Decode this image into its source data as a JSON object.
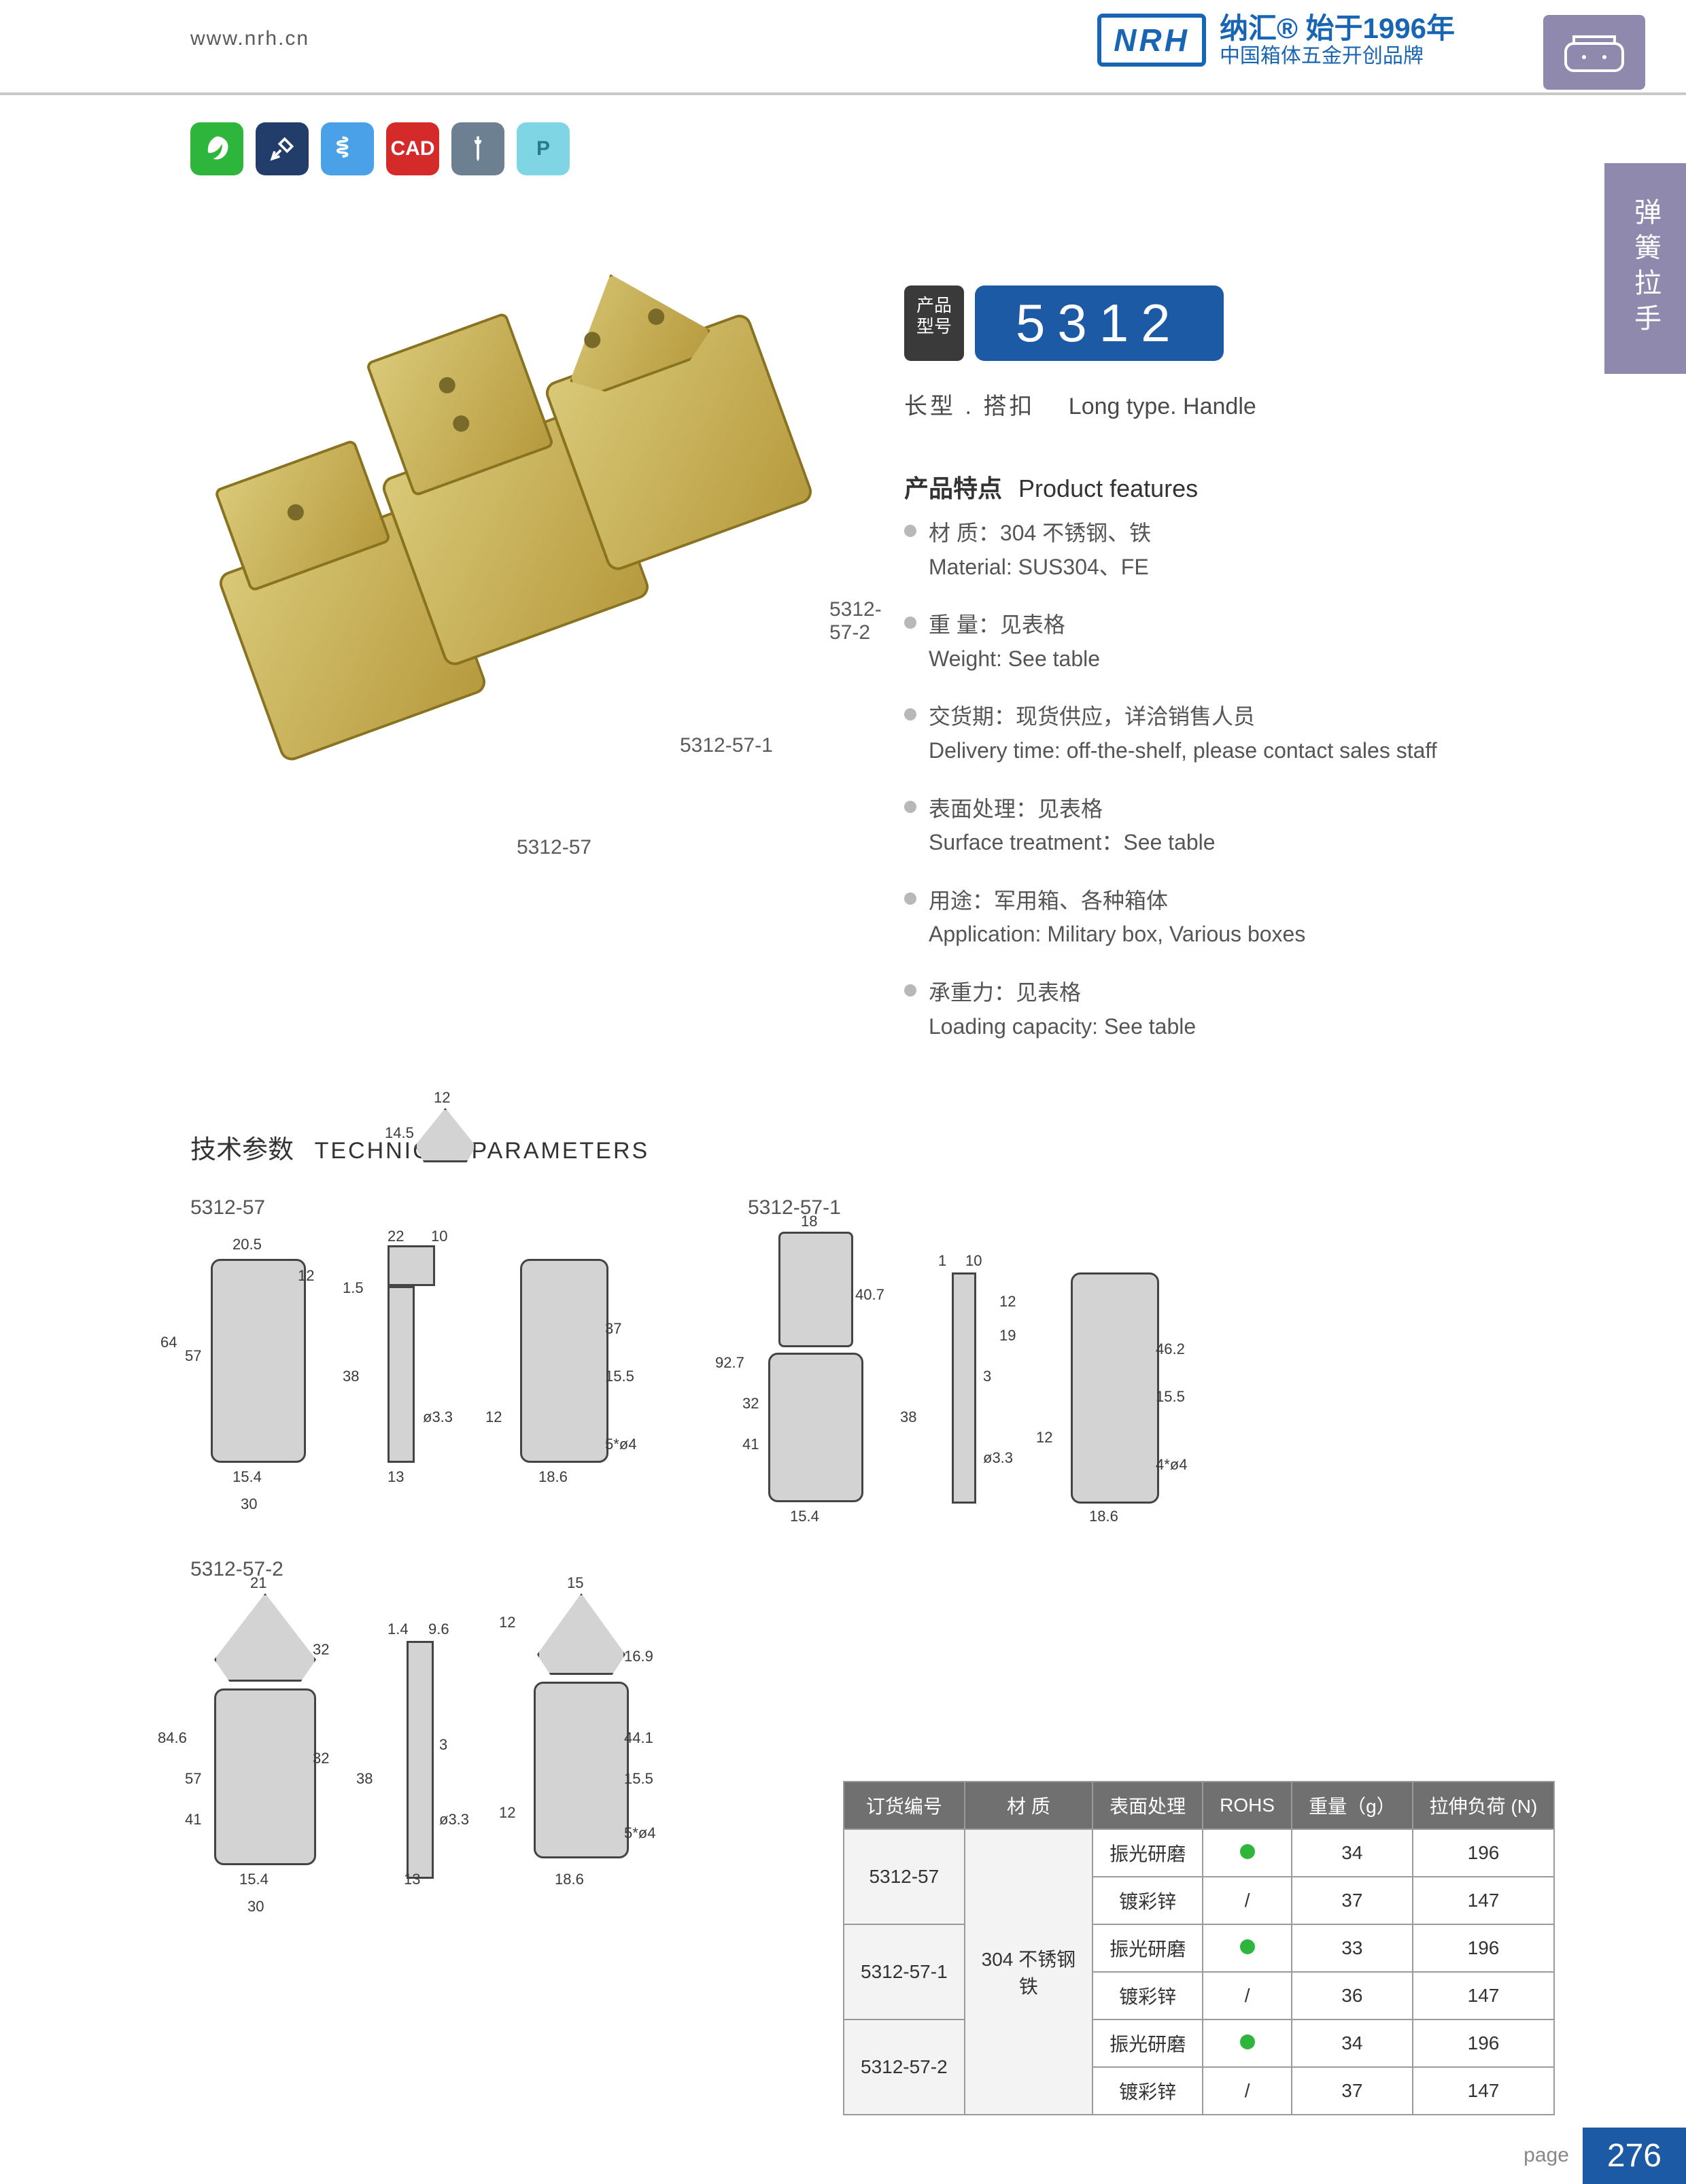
{
  "header": {
    "url": "www.nrh.cn",
    "logo_text": "NRH",
    "brand_cn_top": "纳汇® 始于1996年",
    "brand_cn_sub": "中国箱体五金开创品牌"
  },
  "icon_row": [
    "leaf",
    "tools",
    "spring",
    "CAD",
    "screw",
    "P"
  ],
  "side_tab": "弹簧拉手",
  "photo_labels": {
    "a": "5312-57",
    "b": "5312-57-1",
    "c": "5312-57-2"
  },
  "model": {
    "pre_cn1": "产品",
    "pre_cn2": "型号",
    "number": "5312",
    "sub_cn": "长型 . 搭扣",
    "sub_en": "Long type. Handle"
  },
  "features_title": {
    "cn": "产品特点",
    "en": "Product features"
  },
  "features": [
    {
      "cn": "材 质：304 不锈钢、铁",
      "en": "Material: SUS304、FE"
    },
    {
      "cn": "重 量：见表格",
      "en": "Weight: See table"
    },
    {
      "cn": "交货期：现货供应，详洽销售人员",
      "en": "Delivery time: off-the-shelf, please contact sales staff"
    },
    {
      "cn": "表面处理：见表格",
      "en": "Surface treatment：See table"
    },
    {
      "cn": "用途：军用箱、各种箱体",
      "en": "Application: Military box, Various boxes"
    },
    {
      "cn": "承重力：见表格",
      "en": "Loading capacity: See table"
    }
  ],
  "section_title": {
    "cn": "技术参数",
    "en": "TECHNICAL PARAMETERS"
  },
  "drawings": {
    "a": {
      "label": "5312-57",
      "top": [
        "12",
        "14.5"
      ],
      "front": [
        "20.5",
        "64",
        "57",
        "15.4",
        "30",
        "12"
      ],
      "side": [
        "22",
        "10",
        "1.5",
        "38",
        "13",
        "ø3.3"
      ],
      "back": [
        "37",
        "15.5",
        "12",
        "18.6",
        "5*ø4"
      ]
    },
    "b": {
      "label": "5312-57-1",
      "front": [
        "18",
        "92.7",
        "32",
        "41",
        "15.4",
        "40.7"
      ],
      "side": [
        "1",
        "10",
        "38",
        "ø3.3",
        "3",
        "12",
        "19"
      ],
      "back": [
        "46.2",
        "15.5",
        "12",
        "18.6",
        "4*ø4"
      ]
    },
    "c": {
      "label": "5312-57-2",
      "front": [
        "21",
        "84.6",
        "57",
        "32",
        "32",
        "15.4",
        "30",
        "41"
      ],
      "side": [
        "1.4",
        "9.6",
        "38",
        "13",
        "ø3.3",
        "3"
      ],
      "back": [
        "15",
        "12",
        "16.9",
        "44.1",
        "15.5",
        "12",
        "18.6",
        "5*ø4"
      ]
    }
  },
  "spec_table": {
    "columns": [
      "订货编号",
      "材 质",
      "表面处理",
      "ROHS",
      "重量（g）",
      "拉伸负荷 (N)"
    ],
    "material_merged": "304 不锈钢\n铁",
    "rows": [
      {
        "code": "5312-57",
        "surf": "振光研磨",
        "rohs": true,
        "wt": "34",
        "load": "196"
      },
      {
        "code": "5312-57",
        "surf": "镀彩锌",
        "rohs": false,
        "wt": "37",
        "load": "147"
      },
      {
        "code": "5312-57-1",
        "surf": "振光研磨",
        "rohs": true,
        "wt": "33",
        "load": "196"
      },
      {
        "code": "5312-57-1",
        "surf": "镀彩锌",
        "rohs": false,
        "wt": "36",
        "load": "147"
      },
      {
        "code": "5312-57-2",
        "surf": "振光研磨",
        "rohs": true,
        "wt": "34",
        "load": "196"
      },
      {
        "code": "5312-57-2",
        "surf": "镀彩锌",
        "rohs": false,
        "wt": "37",
        "load": "147"
      }
    ]
  },
  "footer": {
    "page_label": "page",
    "page_number": "276"
  },
  "colors": {
    "brand_blue": "#1c5aa5",
    "side_purple": "#8f89ad",
    "rule": "#c9c9c9",
    "table_head": "#707070",
    "rohs_green": "#2eb53c"
  }
}
